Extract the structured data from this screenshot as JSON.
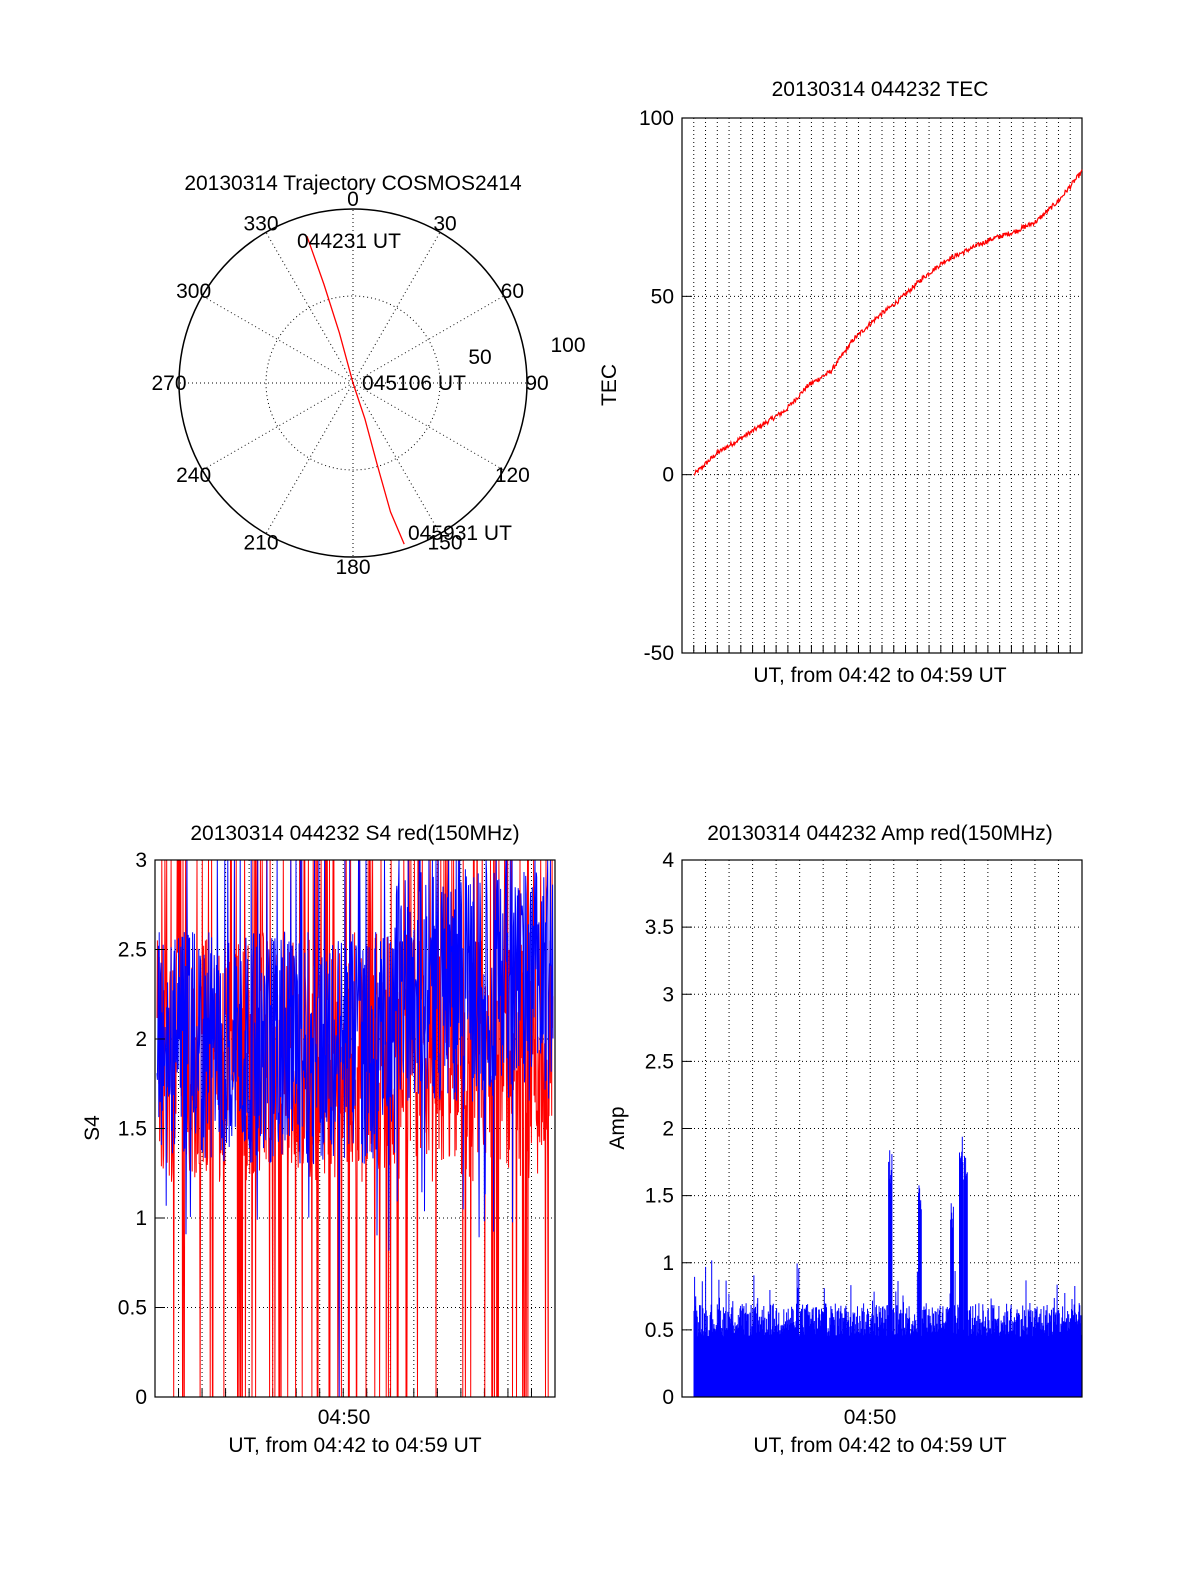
{
  "colors": {
    "red": "#ff0000",
    "blue": "#0000ff",
    "axis": "#000000"
  },
  "chart_data": [
    {
      "type": "polar",
      "title": "20130314 Trajectory COSMOS2414",
      "angle_labels": [
        "0",
        "30",
        "60",
        "90",
        "120",
        "150",
        "180",
        "210",
        "240",
        "270",
        "300",
        "330"
      ],
      "radial_ticks": [
        "50",
        "100"
      ],
      "rmax": 100,
      "series": [
        {
          "name": "trajectory",
          "color": "red",
          "points": [
            [
              -27,
              82
            ],
            [
              -17,
              55
            ],
            [
              -8,
              28
            ],
            [
              0,
              0
            ],
            [
              7,
              -20
            ],
            [
              14,
              -45
            ],
            [
              22,
              -72
            ],
            [
              30,
              -90
            ]
          ]
        }
      ],
      "annotations": [
        {
          "text": "044231 UT",
          "point": "start"
        },
        {
          "text": "045106 UT",
          "point": "center"
        },
        {
          "text": "045931 UT",
          "point": "end"
        }
      ]
    },
    {
      "type": "line",
      "title": "20130314 044232 TEC",
      "xlabel": "UT, from 04:42 to 04:59 UT",
      "ylabel": "TEC",
      "ylim": [
        -50,
        100
      ],
      "yticks": [
        "100",
        "50",
        "0",
        "-50"
      ],
      "x_range_min": [
        0,
        17
      ],
      "series": [
        {
          "name": "TEC",
          "color": "red",
          "x": [
            0,
            1,
            2,
            3,
            4,
            5,
            6,
            7,
            8,
            9,
            10,
            11,
            12,
            13,
            14,
            15,
            16,
            17
          ],
          "y": [
            0,
            6,
            10,
            14,
            18,
            25,
            29,
            38,
            44,
            49,
            55,
            60,
            63,
            66,
            68,
            71,
            77,
            85
          ]
        }
      ]
    },
    {
      "type": "line",
      "title": "20130314 044232 S4 red(150MHz)",
      "xlabel": "UT, from 04:42 to 04:59 UT",
      "ylabel": "S4",
      "ylim": [
        0,
        3
      ],
      "yticks": [
        "3",
        "2.5",
        "2",
        "1.5",
        "1",
        "0.5",
        "0"
      ],
      "xtick_label": "04:50",
      "x_range_min": [
        0,
        17
      ],
      "series": [
        {
          "name": "S4 red",
          "color": "red",
          "style": "noisy spikes to 0 and 3",
          "mean": 2.0
        },
        {
          "name": "S4 blue",
          "color": "blue",
          "style": "noisy",
          "mean": 1.95
        }
      ]
    },
    {
      "type": "bar",
      "title": "20130314 044232 Amp red(150MHz)",
      "xlabel": "UT, from 04:42 to 04:59 UT",
      "ylabel": "Amp",
      "ylim": [
        0,
        4
      ],
      "yticks": [
        "4",
        "3.5",
        "3",
        "2.5",
        "2",
        "1.5",
        "1",
        "0.5",
        "0"
      ],
      "xtick_label": "04:50",
      "x_range_min": [
        0,
        17
      ],
      "series": [
        {
          "name": "Amp",
          "color": "blue",
          "baseline": 0.5,
          "peaks": [
            [
              8.6,
              1.85
            ],
            [
              9.9,
              1.62
            ],
            [
              11.3,
              1.45
            ],
            [
              11.7,
              2.0
            ],
            [
              11.9,
              1.8
            ]
          ]
        }
      ]
    }
  ]
}
